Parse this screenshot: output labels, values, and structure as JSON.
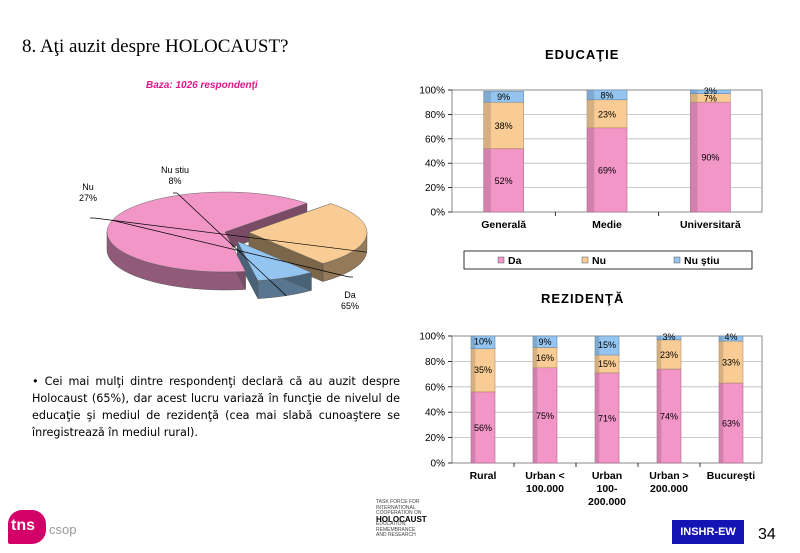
{
  "slide": {
    "title": "8. Aţi auzit despre HOLOCAUST?",
    "note": "•  Cei mai mulţi dintre respondenţi declară că au auzit despre Holocaust (65%), dar acest lucru variază în funcţie de nivelul de educaţie şi mediul de rezidenţă (cea mai slabă cunoaştere se înregistrează în mediul rural).",
    "page_number": "34",
    "brand_tns": "tns",
    "brand_csop": "csop",
    "partner_lines": [
      "TASK FORCE FOR",
      "INTERNATIONAL",
      "COOPERATION ON",
      "HOLOCAUST",
      "EDUCATION,",
      "REMEMBRANCE",
      "AND RESEARCH"
    ],
    "inshr_label": "INSHR-EW"
  },
  "colors": {
    "da": "#f296c8",
    "nu": "#f8cc94",
    "nu_stiu": "#94c4f0",
    "base_text": "#e4148c"
  },
  "chart_data": [
    {
      "type": "pie",
      "subtitle": "Baza: 1026 respondenţi",
      "slices": [
        {
          "label": "Da",
          "value": 65,
          "text": "65%"
        },
        {
          "label": "Nu",
          "value": 27,
          "text": "27%"
        },
        {
          "label": "Nu stiu",
          "value": 8,
          "text": "8%"
        }
      ]
    },
    {
      "type": "bar",
      "stacked": true,
      "title": "EDUCAŢIE",
      "categories": [
        "Generală",
        "Medie",
        "Universitară"
      ],
      "series": [
        {
          "name": "Da",
          "values": [
            52,
            69,
            90
          ]
        },
        {
          "name": "Nu",
          "values": [
            38,
            23,
            7
          ]
        },
        {
          "name": "Nu ştiu",
          "values": [
            9,
            8,
            3
          ]
        }
      ],
      "yticks": [
        "0%",
        "20%",
        "40%",
        "60%",
        "80%",
        "100%"
      ],
      "ylim": [
        0,
        100
      ],
      "legend": "bottom"
    },
    {
      "type": "bar",
      "stacked": true,
      "title": "REZIDENŢĂ",
      "categories": [
        [
          "Rural"
        ],
        [
          "Urban <",
          "100.000"
        ],
        [
          "Urban",
          "100-",
          "200.000"
        ],
        [
          "Urban >",
          "200.000"
        ],
        [
          "Bucureşti"
        ]
      ],
      "series": [
        {
          "name": "Da",
          "values": [
            56,
            75,
            71,
            74,
            63
          ]
        },
        {
          "name": "Nu",
          "values": [
            35,
            16,
            15,
            23,
            33
          ]
        },
        {
          "name": "Nu ştiu",
          "values": [
            10,
            9,
            15,
            3,
            4
          ]
        }
      ],
      "yticks": [
        "0%",
        "20%",
        "40%",
        "60%",
        "80%",
        "100%"
      ],
      "ylim": [
        0,
        100
      ]
    }
  ]
}
